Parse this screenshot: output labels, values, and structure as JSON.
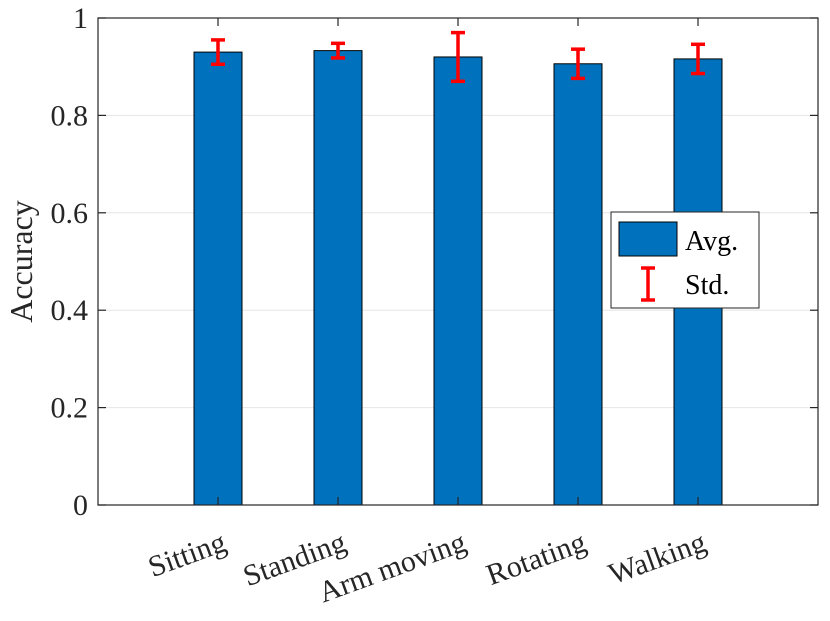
{
  "chart_data": {
    "type": "bar",
    "categories": [
      "Sitting",
      "Standing",
      "Arm moving",
      "Rotating",
      "Walking"
    ],
    "series": [
      {
        "name": "Avg.",
        "values": [
          0.93,
          0.933,
          0.92,
          0.906,
          0.916
        ]
      },
      {
        "name": "Std.",
        "values": [
          0.025,
          0.015,
          0.05,
          0.03,
          0.03
        ]
      }
    ],
    "xlabel": "",
    "ylabel": "Accuracy",
    "ylim": [
      0,
      1
    ],
    "yticks": [
      0,
      0.2,
      0.4,
      0.6,
      0.8,
      1
    ],
    "ytick_labels": [
      "0",
      "0.2",
      "0.4",
      "0.6",
      "0.8",
      "1"
    ],
    "grid": true,
    "legend_position": "right",
    "colors": {
      "bar": "#0072BD",
      "error": "#FF0000",
      "grid": "#E6E6E6",
      "axis": "#262626"
    }
  }
}
